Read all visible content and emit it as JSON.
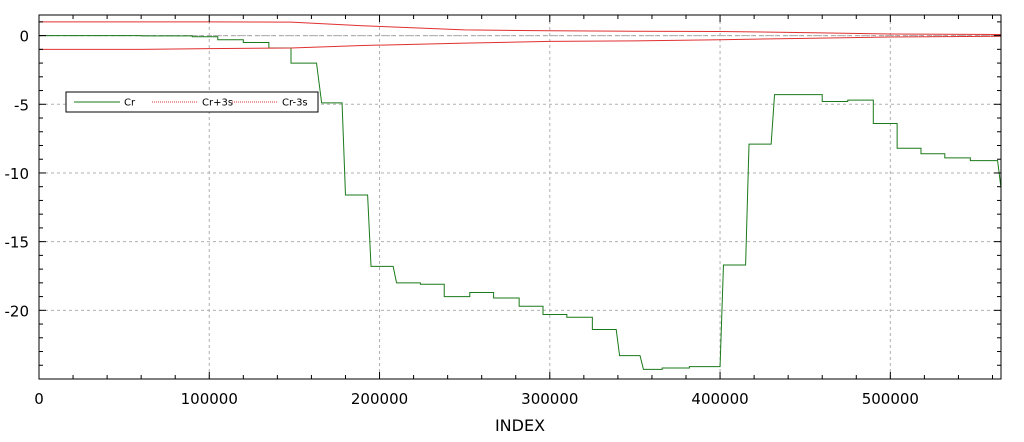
{
  "chart_data": {
    "type": "line",
    "title": "",
    "xlabel": "INDEX",
    "ylabel": "",
    "xlim": [
      0,
      565000
    ],
    "ylim": [
      -25,
      1.5
    ],
    "grid": true,
    "legend_position": "upper-left",
    "x_ticks": [
      0,
      100000,
      200000,
      300000,
      400000,
      500000
    ],
    "x_tick_labels": [
      "0",
      "100000",
      "200000",
      "300000",
      "400000",
      "500000"
    ],
    "y_ticks": [
      0,
      -5,
      -10,
      -15,
      -20
    ],
    "y_tick_labels": [
      "0",
      "-5",
      "-10",
      "-15",
      "-20"
    ],
    "colors": {
      "cr": "#1a7a1a",
      "limit": "#e03030",
      "grid": "#b0b0b0",
      "zero_line": "#aaaaaa"
    },
    "series": [
      {
        "name": "Cr",
        "style": "solid",
        "color": "#1a7a1a",
        "points": [
          [
            0,
            0
          ],
          [
            60000,
            0
          ],
          [
            60000,
            -0.02
          ],
          [
            90000,
            -0.02
          ],
          [
            90000,
            -0.08
          ],
          [
            105000,
            -0.08
          ],
          [
            105000,
            -0.3
          ],
          [
            120000,
            -0.3
          ],
          [
            120000,
            -0.5
          ],
          [
            135000,
            -0.5
          ],
          [
            135000,
            -0.9
          ],
          [
            148000,
            -0.9
          ],
          [
            148000,
            -2.0
          ],
          [
            163000,
            -2.0
          ],
          [
            166000,
            -4.9
          ],
          [
            178000,
            -4.9
          ],
          [
            180000,
            -11.6
          ],
          [
            193000,
            -11.6
          ],
          [
            195000,
            -16.8
          ],
          [
            208000,
            -16.8
          ],
          [
            210000,
            -18.0
          ],
          [
            224000,
            -18.0
          ],
          [
            224000,
            -18.1
          ],
          [
            238000,
            -18.1
          ],
          [
            238000,
            -19.0
          ],
          [
            253000,
            -19.0
          ],
          [
            253000,
            -18.7
          ],
          [
            267000,
            -18.7
          ],
          [
            267000,
            -19.1
          ],
          [
            282000,
            -19.1
          ],
          [
            282000,
            -19.7
          ],
          [
            296000,
            -19.7
          ],
          [
            296000,
            -20.3
          ],
          [
            310000,
            -20.3
          ],
          [
            310000,
            -20.5
          ],
          [
            325000,
            -20.5
          ],
          [
            325000,
            -21.4
          ],
          [
            339000,
            -21.4
          ],
          [
            341000,
            -23.3
          ],
          [
            353000,
            -23.3
          ],
          [
            355000,
            -24.3
          ],
          [
            366000,
            -24.3
          ],
          [
            366000,
            -24.2
          ],
          [
            382000,
            -24.2
          ],
          [
            382000,
            -24.1
          ],
          [
            400000,
            -24.1
          ],
          [
            402000,
            -16.7
          ],
          [
            415000,
            -16.7
          ],
          [
            417000,
            -7.9
          ],
          [
            430000,
            -7.9
          ],
          [
            432000,
            -4.3
          ],
          [
            446000,
            -4.3
          ],
          [
            446000,
            -4.3
          ],
          [
            460000,
            -4.3
          ],
          [
            460000,
            -4.8
          ],
          [
            475000,
            -4.8
          ],
          [
            475000,
            -4.7
          ],
          [
            490000,
            -4.7
          ],
          [
            490000,
            -6.4
          ],
          [
            504000,
            -6.4
          ],
          [
            504000,
            -8.2
          ],
          [
            518000,
            -8.2
          ],
          [
            518000,
            -8.6
          ],
          [
            532000,
            -8.6
          ],
          [
            532000,
            -8.9
          ],
          [
            547000,
            -8.9
          ],
          [
            547000,
            -9.1
          ],
          [
            560000,
            -9.1
          ],
          [
            563000,
            -9.1
          ],
          [
            565000,
            -11.1
          ]
        ]
      },
      {
        "name": "Cr+3s",
        "style": "dotted",
        "color": "#e03030",
        "points": [
          [
            0,
            1.0
          ],
          [
            60000,
            1.0
          ],
          [
            100000,
            1.0
          ],
          [
            148000,
            0.98
          ],
          [
            190000,
            0.72
          ],
          [
            250000,
            0.42
          ],
          [
            300000,
            0.35
          ],
          [
            350000,
            0.32
          ],
          [
            400000,
            0.3
          ],
          [
            450000,
            0.22
          ],
          [
            500000,
            0.12
          ],
          [
            565000,
            0.08
          ]
        ]
      },
      {
        "name": "Cr-3s",
        "style": "dotted",
        "color": "#e03030",
        "points": [
          [
            0,
            -1.0
          ],
          [
            60000,
            -1.0
          ],
          [
            100000,
            -0.95
          ],
          [
            148000,
            -0.9
          ],
          [
            190000,
            -0.72
          ],
          [
            250000,
            -0.55
          ],
          [
            300000,
            -0.42
          ],
          [
            350000,
            -0.38
          ],
          [
            400000,
            -0.3
          ],
          [
            450000,
            -0.2
          ],
          [
            500000,
            -0.1
          ],
          [
            565000,
            -0.05
          ]
        ]
      }
    ]
  }
}
